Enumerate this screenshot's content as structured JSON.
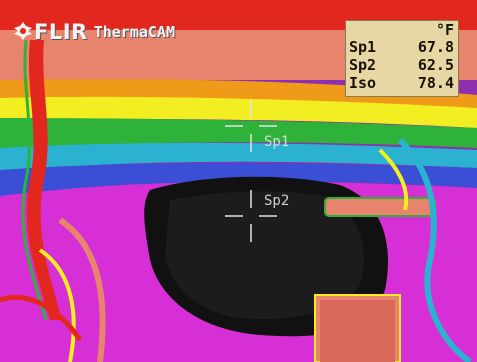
{
  "brand": {
    "logo": "FLIR",
    "product": "ThermaCAM"
  },
  "readout": {
    "unit": "°F",
    "rows": [
      {
        "label": "Sp1",
        "value": "67.8"
      },
      {
        "label": "Sp2",
        "value": "62.5"
      },
      {
        "label": "Iso",
        "value": "78.4"
      }
    ]
  },
  "spots": [
    {
      "label": "Sp1"
    },
    {
      "label": "Sp2"
    }
  ],
  "colors": {
    "hot_red": "#e2271f",
    "salmon": "#e8836e",
    "orange": "#f09a1a",
    "yellow": "#f2ee22",
    "green": "#2fb23a",
    "cyan": "#2bb2d0",
    "blue": "#3a4fd6",
    "magenta": "#d62fd6",
    "purple": "#8e2fb0",
    "cold": "#111111"
  }
}
